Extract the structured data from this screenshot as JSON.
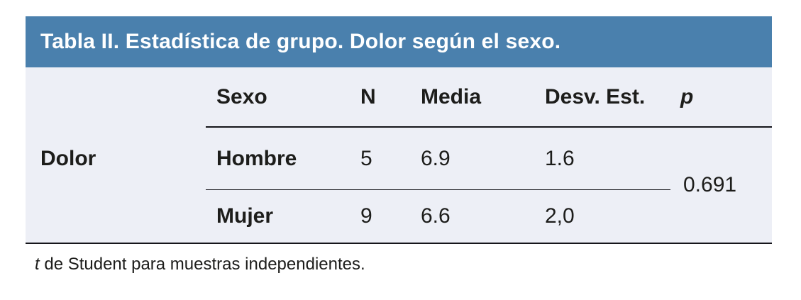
{
  "title": "Tabla II. Estadística de grupo. Dolor según el sexo.",
  "table": {
    "row_group_label": "Dolor",
    "columns": [
      "Sexo",
      "N",
      "Media",
      "Desv. Est.",
      "p"
    ],
    "rows": [
      {
        "sexo": "Hombre",
        "n": "5",
        "media": "6.9",
        "desv_est": "1.6"
      },
      {
        "sexo": "Mujer",
        "n": "9",
        "media": "6.6",
        "desv_est": "2,0"
      }
    ],
    "p_value": "0.691"
  },
  "footnote": {
    "italic": "t",
    "rest": " de Student para muestras independientes."
  },
  "colors": {
    "header_bg": "#4a80ad",
    "body_bg": "#edeff6",
    "title_text": "#ffffff",
    "body_text": "#1d1d1b",
    "line": "#15151a"
  }
}
